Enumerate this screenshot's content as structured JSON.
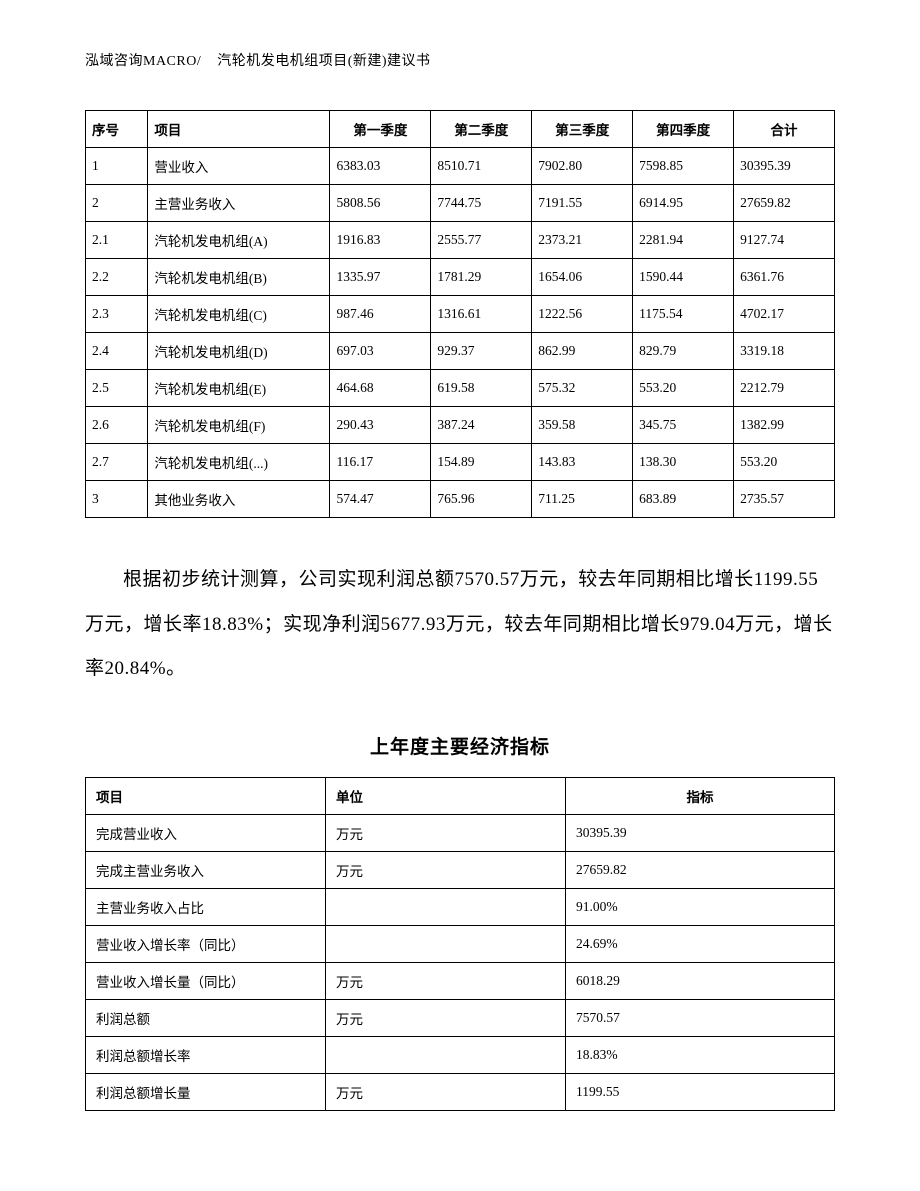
{
  "header": {
    "company": "泓域咨询MACRO/",
    "doc_title": "汽轮机发电机组项目(新建)建议书"
  },
  "quarterly_table": {
    "columns": {
      "seq": "序号",
      "item": "项目",
      "q1": "第一季度",
      "q2": "第二季度",
      "q3": "第三季度",
      "q4": "第四季度",
      "total": "合计"
    },
    "rows": [
      {
        "seq": "1",
        "item": "营业收入",
        "q1": "6383.03",
        "q2": "8510.71",
        "q3": "7902.80",
        "q4": "7598.85",
        "total": "30395.39"
      },
      {
        "seq": "2",
        "item": "主营业务收入",
        "q1": "5808.56",
        "q2": "7744.75",
        "q3": "7191.55",
        "q4": "6914.95",
        "total": "27659.82"
      },
      {
        "seq": "2.1",
        "item": "汽轮机发电机组(A)",
        "q1": "1916.83",
        "q2": "2555.77",
        "q3": "2373.21",
        "q4": "2281.94",
        "total": "9127.74"
      },
      {
        "seq": "2.2",
        "item": "汽轮机发电机组(B)",
        "q1": "1335.97",
        "q2": "1781.29",
        "q3": "1654.06",
        "q4": "1590.44",
        "total": "6361.76"
      },
      {
        "seq": "2.3",
        "item": "汽轮机发电机组(C)",
        "q1": "987.46",
        "q2": "1316.61",
        "q3": "1222.56",
        "q4": "1175.54",
        "total": "4702.17"
      },
      {
        "seq": "2.4",
        "item": "汽轮机发电机组(D)",
        "q1": "697.03",
        "q2": "929.37",
        "q3": "862.99",
        "q4": "829.79",
        "total": "3319.18"
      },
      {
        "seq": "2.5",
        "item": "汽轮机发电机组(E)",
        "q1": "464.68",
        "q2": "619.58",
        "q3": "575.32",
        "q4": "553.20",
        "total": "2212.79"
      },
      {
        "seq": "2.6",
        "item": "汽轮机发电机组(F)",
        "q1": "290.43",
        "q2": "387.24",
        "q3": "359.58",
        "q4": "345.75",
        "total": "1382.99"
      },
      {
        "seq": "2.7",
        "item": "汽轮机发电机组(...)",
        "q1": "116.17",
        "q2": "154.89",
        "q3": "143.83",
        "q4": "138.30",
        "total": "553.20"
      },
      {
        "seq": "3",
        "item": "其他业务收入",
        "q1": "574.47",
        "q2": "765.96",
        "q3": "711.25",
        "q4": "683.89",
        "total": "2735.57"
      }
    ]
  },
  "paragraph_text": "根据初步统计测算，公司实现利润总额7570.57万元，较去年同期相比增长1199.55万元，增长率18.83%；实现净利润5677.93万元，较去年同期相比增长979.04万元，增长率20.84%。",
  "indicators_section": {
    "title": "上年度主要经济指标",
    "columns": {
      "item": "项目",
      "unit": "单位",
      "value": "指标"
    },
    "rows": [
      {
        "item": "完成营业收入",
        "unit": "万元",
        "value": "30395.39"
      },
      {
        "item": "完成主营业务收入",
        "unit": "万元",
        "value": "27659.82"
      },
      {
        "item": "主营业务收入占比",
        "unit": "",
        "value": "91.00%"
      },
      {
        "item": "营业收入增长率（同比）",
        "unit": "",
        "value": "24.69%"
      },
      {
        "item": "营业收入增长量（同比）",
        "unit": "万元",
        "value": "6018.29"
      },
      {
        "item": "利润总额",
        "unit": "万元",
        "value": "7570.57"
      },
      {
        "item": "利润总额增长率",
        "unit": "",
        "value": "18.83%"
      },
      {
        "item": "利润总额增长量",
        "unit": "万元",
        "value": "1199.55"
      }
    ]
  }
}
